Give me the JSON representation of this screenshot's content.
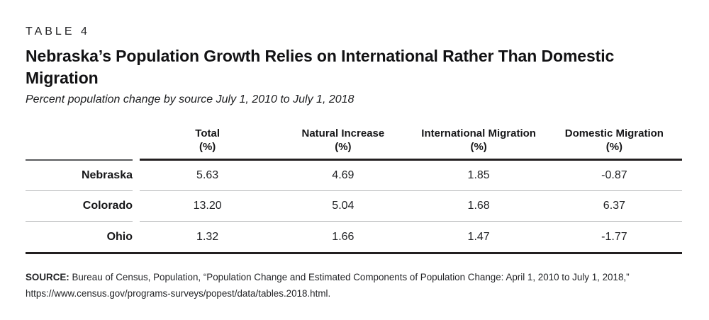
{
  "header": {
    "kicker": "TABLE 4",
    "title": "Nebraska’s Population Growth Relies on International Rather Than Domestic Migration",
    "subtitle": "Percent population change by source July 1, 2010 to July 1, 2018"
  },
  "table": {
    "columns": [
      {
        "label": "Total",
        "unit": "(%)"
      },
      {
        "label": "Natural Increase",
        "unit": "(%)"
      },
      {
        "label": "International Migration",
        "unit": "(%)"
      },
      {
        "label": "Domestic Migration",
        "unit": "(%)"
      }
    ],
    "rows": [
      {
        "label": "Nebraska",
        "values": [
          "5.63",
          "4.69",
          "1.85",
          "-0.87"
        ]
      },
      {
        "label": "Colorado",
        "values": [
          "13.20",
          "5.04",
          "1.68",
          "6.37"
        ]
      },
      {
        "label": "Ohio",
        "values": [
          "1.32",
          "1.66",
          "1.47",
          "-1.77"
        ]
      }
    ]
  },
  "source": {
    "label": "SOURCE:",
    "text": " Bureau of Census, Population, “Population Change and Estimated Components of Population Change: April 1, 2010 to July 1, 2018,” https://www.census.gov/programs-surveys/popest/data/tables.2018.html."
  },
  "colors": {
    "text": "#1e1f21",
    "rule_heavy": "#221f20",
    "rule_light": "#b2b3b5",
    "rule_label_header": "#595a5d"
  }
}
